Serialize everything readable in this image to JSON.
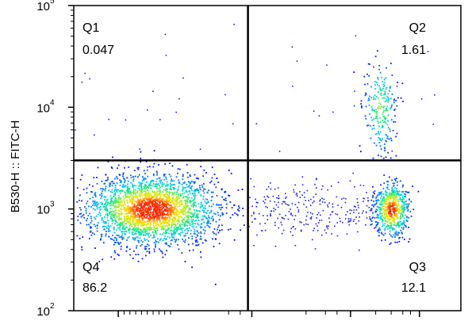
{
  "chart_data": {
    "type": "scatter",
    "ylabel": "B530-H :: FITC-H",
    "xlabel": "",
    "y_scale": "log",
    "ylim": [
      100,
      100000
    ],
    "xlim": [
      0,
      1
    ],
    "y_ticks": [
      {
        "base": "10",
        "exp": "2",
        "value": 100
      },
      {
        "base": "10",
        "exp": "3",
        "value": 1000
      },
      {
        "base": "10",
        "exp": "4",
        "value": 10000
      },
      {
        "base": "10",
        "exp": "5",
        "value": 100000
      }
    ],
    "gate": {
      "x": 0.45,
      "y": 3000
    },
    "quadrants": [
      {
        "label": "Q1",
        "value": "0.047",
        "position": "top-left"
      },
      {
        "label": "Q2",
        "value": "1.61",
        "position": "top-right"
      },
      {
        "label": "Q3",
        "value": "12.1",
        "position": "bottom-right"
      },
      {
        "label": "Q4",
        "value": "86.2",
        "position": "bottom-left"
      }
    ],
    "populations": [
      {
        "name": "",
        "quadrant": "Q4",
        "x_center": 0.2,
        "y_center": 1000,
        "fraction": 0.862,
        "colormap": "density-jet"
      },
      {
        "name": "",
        "quadrant": "Q3",
        "x_center": 0.82,
        "y_center": 1000,
        "fraction": 0.121,
        "colormap": "density-jet"
      },
      {
        "name": "",
        "quadrant": "Q2",
        "x_center": 0.79,
        "y_center": 10000,
        "fraction": 0.0161,
        "colormap": "density-jet"
      }
    ],
    "colors": {
      "low": "#0000ff",
      "mid": "#00ddaa",
      "high": "#ffee00",
      "peak": "#ff2200",
      "gate_line": "#000000"
    }
  }
}
